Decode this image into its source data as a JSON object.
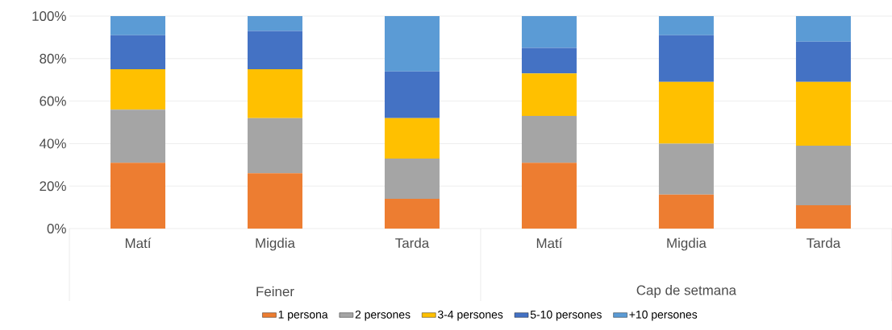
{
  "chart_data": {
    "type": "bar",
    "stacked": true,
    "categories": [
      "Matí",
      "Migdia",
      "Tarda",
      "Matí",
      "Migdia",
      "Tarda"
    ],
    "series": [
      {
        "name": "1 persona",
        "color": "#ed7d31",
        "values": [
          31,
          26,
          14,
          31,
          16,
          11
        ]
      },
      {
        "name": "2 persones",
        "color": "#a5a5a5",
        "values": [
          25,
          26,
          19,
          22,
          24,
          28
        ]
      },
      {
        "name": "3-4 persones",
        "color": "#ffc000",
        "values": [
          19,
          23,
          19,
          20,
          29,
          30
        ]
      },
      {
        "name": "5-10 persones",
        "color": "#4472c4",
        "values": [
          16,
          18,
          22,
          12,
          22,
          19
        ]
      },
      {
        "name": "+10 persones",
        "color": "#5b9bd5",
        "values": [
          9,
          7,
          26,
          15,
          9,
          12
        ]
      }
    ],
    "ylim": [
      0,
      100
    ],
    "yticks": [
      {
        "value": 0,
        "label": "0%"
      },
      {
        "value": 20,
        "label": "20%"
      },
      {
        "value": 40,
        "label": "40%"
      },
      {
        "value": 60,
        "label": "60%"
      },
      {
        "value": 80,
        "label": "80%"
      },
      {
        "value": 100,
        "label": "100%"
      }
    ],
    "grid": "y",
    "legend": "bottom",
    "annotations": [
      "Feiner",
      "Cap de setmana"
    ]
  }
}
